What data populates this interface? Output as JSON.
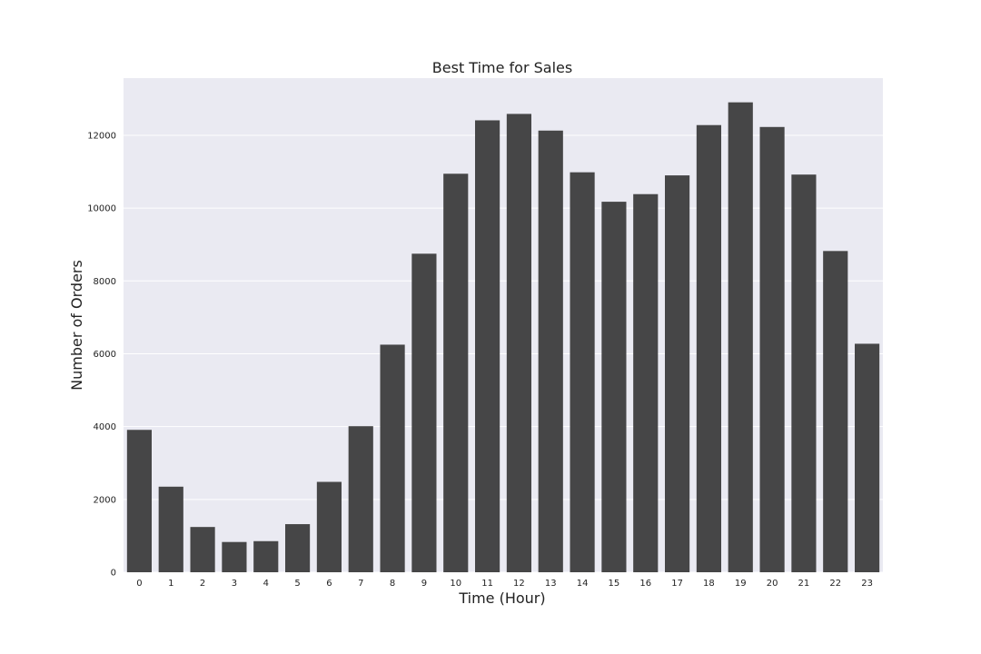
{
  "chart_data": {
    "type": "bar",
    "title": "Best Time for Sales",
    "xlabel": "Time (Hour)",
    "ylabel": "Number of Orders",
    "categories": [
      "0",
      "1",
      "2",
      "3",
      "4",
      "5",
      "6",
      "7",
      "8",
      "9",
      "10",
      "11",
      "12",
      "13",
      "14",
      "15",
      "16",
      "17",
      "18",
      "19",
      "20",
      "21",
      "22",
      "23"
    ],
    "values": [
      3910,
      2350,
      1243,
      831,
      854,
      1321,
      2482,
      4011,
      6250,
      8748,
      10944,
      12411,
      12587,
      12129,
      10984,
      10175,
      10384,
      10899,
      12280,
      12905,
      12228,
      10921,
      8822,
      6275
    ],
    "ylim": [
      0,
      13570
    ],
    "yticks": [
      0,
      2000,
      4000,
      6000,
      8000,
      10000,
      12000
    ],
    "grid": true,
    "colors": {
      "bar": "#464647",
      "plot_background": "#eaeaf2",
      "grid": "#ffffff"
    }
  }
}
